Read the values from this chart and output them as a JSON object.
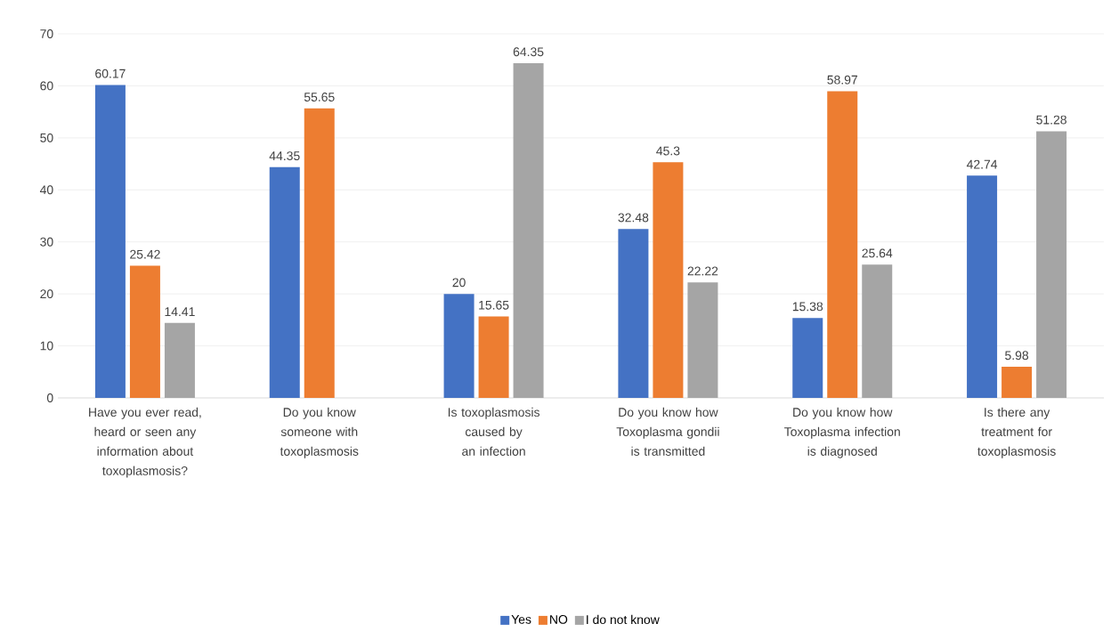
{
  "chart_data": {
    "type": "bar",
    "categories": [
      "Have you ever read, heard or seen any information about toxoplasmosis?",
      "Do you know someone with toxoplasmosis",
      "Is toxoplasmosis caused by an infection",
      "Do you know how Toxoplasma gondii is transmitted",
      "Do you know how Toxoplasma infection is diagnosed",
      "Is there any treatment for toxoplasmosis"
    ],
    "series": [
      {
        "name": "Yes",
        "color": "#4472c4",
        "values": [
          60.17,
          44.35,
          20,
          32.48,
          15.38,
          42.74
        ]
      },
      {
        "name": "NO",
        "color": "#ed7d31",
        "values": [
          25.42,
          55.65,
          15.65,
          45.3,
          58.97,
          5.98
        ]
      },
      {
        "name": "I do not know",
        "color": "#a5a5a5",
        "values": [
          14.41,
          null,
          64.35,
          22.22,
          25.64,
          51.28
        ]
      }
    ],
    "ylim": [
      0,
      70
    ],
    "yticks": [
      0,
      10,
      20,
      30,
      40,
      50,
      60,
      70
    ],
    "grid": "y",
    "legend": "bottom",
    "data_labels": true
  }
}
